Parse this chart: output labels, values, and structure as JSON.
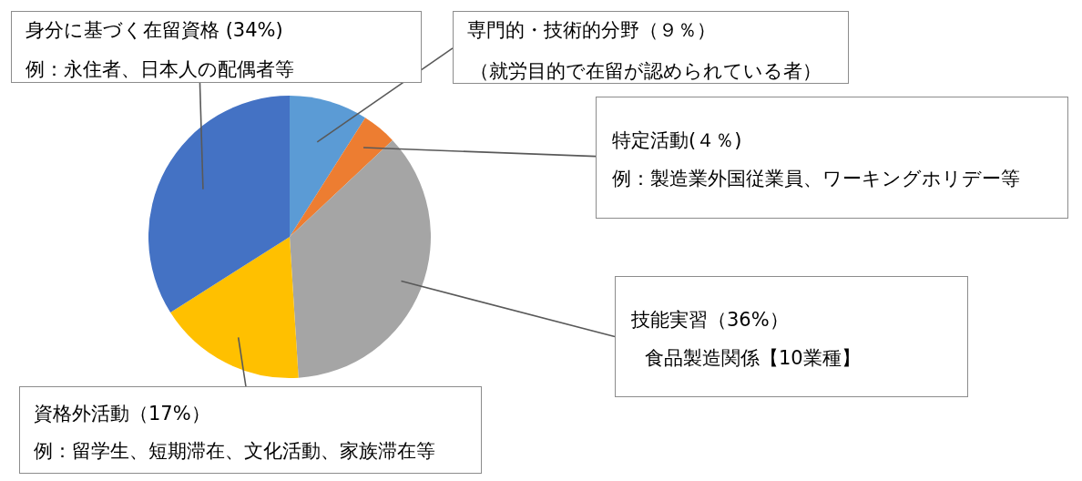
{
  "chart_data": {
    "type": "pie",
    "categories": [
      "専門的・技術的分野",
      "特定活動",
      "技能実習",
      "資格外活動",
      "身分に基づく在留資格"
    ],
    "values": [
      9,
      4,
      36,
      17,
      34
    ],
    "colors": [
      "#5b9bd5",
      "#ed7d31",
      "#a5a5a5",
      "#ffc000",
      "#4472c4"
    ],
    "value_labels": [
      "（９％）",
      "(４％)",
      "（36%）",
      "（17%）",
      " (34%)"
    ],
    "annotations": [
      {
        "text": "（就労目的で在留が認められている者）",
        "x": "専門的・技術的分野"
      },
      {
        "text": "例：製造業外国従業員、ワーキングホリデー等",
        "x": "特定活動"
      },
      {
        "text": "食品製造関係【10業種】",
        "x": "技能実習"
      },
      {
        "text": "例：留学生、短期滞在、文化活動、家族滞在等",
        "x": "資格外活動"
      },
      {
        "text": "例：永住者、日本人の配偶者等",
        "x": "身分に基づく在留資格"
      }
    ]
  }
}
